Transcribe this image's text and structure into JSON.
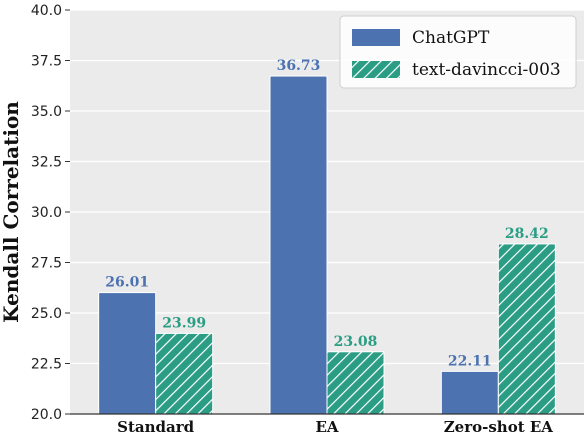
{
  "chart_data": {
    "type": "bar",
    "title": "",
    "xlabel": "",
    "ylabel": "Kendall Correlation",
    "ylim": [
      20.0,
      40.0
    ],
    "yticks": [
      "20.0",
      "22.5",
      "25.0",
      "27.5",
      "30.0",
      "32.5",
      "35.0",
      "37.5",
      "40.0"
    ],
    "categories": [
      "Standard",
      "EA",
      "Zero-shot EA"
    ],
    "series": [
      {
        "name": "ChatGPT",
        "values": [
          26.01,
          36.73,
          22.11
        ],
        "labels": [
          "26.01",
          "36.73",
          "22.11"
        ],
        "color": "#4c72b0",
        "hatch": false
      },
      {
        "name": "text-davincci-003",
        "values": [
          23.99,
          23.08,
          28.42
        ],
        "labels": [
          "23.99",
          "23.08",
          "28.42"
        ],
        "color": "#2a9d84",
        "hatch": true
      }
    ],
    "grid": true,
    "legend_position": "top-right",
    "background": "#ebebeb"
  }
}
